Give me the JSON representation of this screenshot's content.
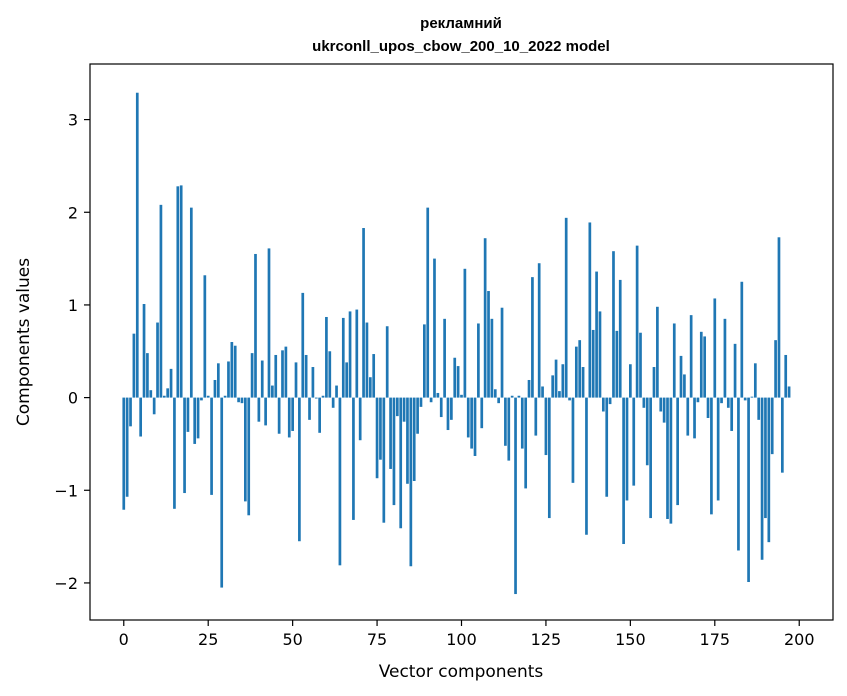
{
  "chart_data": {
    "type": "bar",
    "title_line1": "рекламний",
    "title_line2": "ukrconll_upos_cbow_200_10_2022 model",
    "xlabel": "Vector components",
    "ylabel": "Components values",
    "xlim": [
      -10,
      210
    ],
    "ylim": [
      -2.4,
      3.6
    ],
    "xticks": [
      0,
      25,
      50,
      75,
      100,
      125,
      150,
      175,
      200
    ],
    "yticks": [
      -2,
      -1,
      0,
      1,
      2,
      3
    ],
    "ytick_labels": [
      "−2",
      "−1",
      "0",
      "1",
      "2",
      "3"
    ],
    "grid": false,
    "bar_color": "#1f77b4",
    "values": [
      -1.21,
      -1.07,
      -0.31,
      0.69,
      3.29,
      -0.42,
      1.01,
      0.48,
      0.08,
      -0.18,
      0.81,
      2.08,
      0.02,
      0.1,
      0.31,
      -1.2,
      2.28,
      2.29,
      -1.03,
      -0.37,
      2.05,
      -0.5,
      -0.44,
      -0.03,
      1.32,
      0.02,
      -1.05,
      0.19,
      0.37,
      -2.05,
      0.02,
      0.39,
      0.6,
      0.56,
      -0.05,
      -0.06,
      -1.12,
      -1.27,
      0.48,
      1.55,
      -0.26,
      0.4,
      -0.3,
      1.61,
      0.13,
      0.46,
      -0.39,
      0.51,
      0.55,
      -0.43,
      -0.36,
      0.38,
      -1.55,
      1.13,
      0.46,
      -0.24,
      0.33,
      -0.01,
      -0.38,
      0.02,
      0.87,
      0.5,
      -0.11,
      0.13,
      -1.81,
      0.86,
      0.38,
      0.93,
      -1.32,
      0.95,
      -0.46,
      1.83,
      0.81,
      0.22,
      0.47,
      -0.87,
      -0.67,
      -1.35,
      0.77,
      -0.77,
      -1.16,
      -0.2,
      -1.41,
      -0.26,
      -0.93,
      -1.82,
      -0.9,
      -0.39,
      -0.1,
      0.79,
      2.05,
      -0.05,
      1.5,
      0.05,
      -0.21,
      0.85,
      -0.35,
      -0.24,
      0.43,
      0.34,
      0.03,
      1.39,
      -0.43,
      -0.55,
      -0.63,
      0.8,
      -0.33,
      1.72,
      1.15,
      0.85,
      0.09,
      -0.06,
      0.97,
      -0.52,
      -0.68,
      0.02,
      -2.12,
      0.02,
      -0.55,
      -0.98,
      0.19,
      1.3,
      -0.41,
      1.45,
      0.12,
      -0.62,
      -1.3,
      0.24,
      0.41,
      0.07,
      0.36,
      1.94,
      -0.03,
      -0.92,
      0.55,
      0.62,
      0.33,
      -1.48,
      1.89,
      0.73,
      1.36,
      0.93,
      -0.15,
      -1.07,
      -0.07,
      1.58,
      0.72,
      1.27,
      -1.58,
      -1.11,
      0.36,
      -0.95,
      1.64,
      0.7,
      -0.11,
      -0.73,
      -1.3,
      0.33,
      0.98,
      -0.15,
      -0.27,
      -1.31,
      -1.36,
      0.8,
      -1.16,
      0.45,
      0.25,
      -0.41,
      0.89,
      -0.44,
      -0.05,
      0.71,
      0.66,
      -0.22,
      -1.26,
      1.07,
      -1.11,
      -0.06,
      0.85,
      -0.11,
      -0.36,
      0.58,
      -1.65,
      1.25,
      -0.03,
      -1.99,
      0.01,
      0.37,
      -0.24,
      -1.75,
      -1.3,
      -1.56,
      -0.61,
      0.62,
      1.73,
      -0.81,
      0.46,
      0.12
    ]
  }
}
